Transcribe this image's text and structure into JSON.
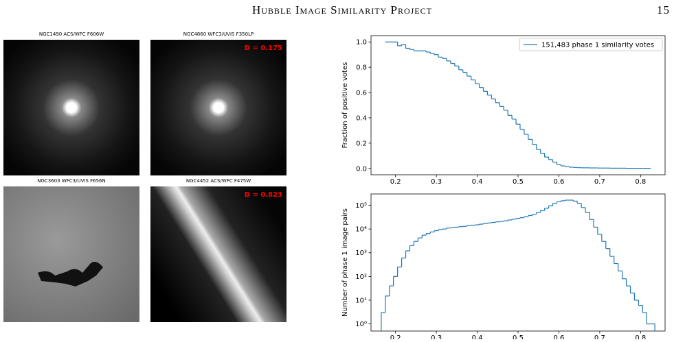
{
  "header": {
    "title": "Hubble Image Similarity Project",
    "page": "15"
  },
  "images": [
    {
      "caption": "NGC1490 ACS/WFC F606W"
    },
    {
      "caption": "NGC4860 WFC3/UVIS F350LP",
      "distance": "D = 0.175"
    },
    {
      "caption": "NGC3603 WFC3/UVIS F656N"
    },
    {
      "caption": "NGC4452 ACS/WFC F475W",
      "distance": "D = 0.823"
    }
  ],
  "chart_data": [
    {
      "type": "histogram",
      "ylabel": "Fraction of positive votes",
      "legend": "upper right",
      "log": false,
      "xlim": [
        0.14,
        0.86
      ],
      "ylim": [
        -0.05,
        1.05
      ],
      "xticks": [
        0.2,
        0.3,
        0.4,
        0.5,
        0.6,
        0.7,
        0.8
      ],
      "yticks": [
        {
          "value": 0,
          "label": "0.0"
        },
        {
          "value": 0.2,
          "label": "0.2"
        },
        {
          "value": 0.4,
          "label": "0.4"
        },
        {
          "value": 0.6,
          "label": "0.6"
        },
        {
          "value": 0.8,
          "label": "0.8"
        },
        {
          "value": 1,
          "label": "1.0"
        }
      ],
      "bins": [
        0.175,
        0.185,
        0.195,
        0.205,
        0.215,
        0.225,
        0.235,
        0.245,
        0.255,
        0.265,
        0.275,
        0.285,
        0.295,
        0.305,
        0.315,
        0.325,
        0.335,
        0.345,
        0.355,
        0.365,
        0.375,
        0.385,
        0.395,
        0.405,
        0.415,
        0.425,
        0.435,
        0.445,
        0.455,
        0.465,
        0.475,
        0.485,
        0.495,
        0.505,
        0.515,
        0.525,
        0.535,
        0.545,
        0.555,
        0.565,
        0.575,
        0.585,
        0.595,
        0.605,
        0.615,
        0.625,
        0.635,
        0.645,
        0.655,
        0.665,
        0.675,
        0.685,
        0.695,
        0.705,
        0.715,
        0.725,
        0.735,
        0.745,
        0.755,
        0.765,
        0.775,
        0.785,
        0.795,
        0.805,
        0.815,
        0.825
      ],
      "series": [
        {
          "name": "151,483 phase 1 similarity votes",
          "color": "#1f77b4",
          "values": [
            1.0,
            1.0,
            1.0,
            0.97,
            0.98,
            0.95,
            0.94,
            0.93,
            0.93,
            0.93,
            0.92,
            0.91,
            0.9,
            0.88,
            0.87,
            0.85,
            0.83,
            0.81,
            0.78,
            0.76,
            0.73,
            0.7,
            0.67,
            0.64,
            0.61,
            0.58,
            0.55,
            0.52,
            0.49,
            0.46,
            0.42,
            0.39,
            0.35,
            0.31,
            0.27,
            0.23,
            0.19,
            0.15,
            0.12,
            0.09,
            0.07,
            0.05,
            0.03,
            0.02,
            0.015,
            0.01,
            0.008,
            0.006,
            0.005,
            0.005,
            0.004,
            0.004,
            0.003,
            0.003,
            0.003,
            0.002,
            0.002,
            0.002,
            0.002,
            0.001,
            0.001,
            0.001,
            0.001,
            0.001,
            0.001
          ]
        }
      ]
    },
    {
      "type": "histogram",
      "ylabel": "Number of phase 1 image pairs",
      "log": true,
      "xlim": [
        0.14,
        0.86
      ],
      "ylim": [
        0.5,
        300000
      ],
      "xticks": [
        0.2,
        0.3,
        0.4,
        0.5,
        0.6,
        0.7,
        0.8
      ],
      "yticks": [
        {
          "value": 1,
          "label": "10⁰"
        },
        {
          "value": 10,
          "label": "10¹"
        },
        {
          "value": 100,
          "label": "10²"
        },
        {
          "value": 1000,
          "label": "10³"
        },
        {
          "value": 10000,
          "label": "10⁴"
        },
        {
          "value": 100000,
          "label": "10⁵"
        }
      ],
      "bins": [
        0.165,
        0.175,
        0.185,
        0.195,
        0.205,
        0.215,
        0.225,
        0.235,
        0.245,
        0.255,
        0.265,
        0.275,
        0.285,
        0.295,
        0.305,
        0.315,
        0.325,
        0.335,
        0.345,
        0.355,
        0.365,
        0.375,
        0.385,
        0.395,
        0.405,
        0.415,
        0.425,
        0.435,
        0.445,
        0.455,
        0.465,
        0.475,
        0.485,
        0.495,
        0.505,
        0.515,
        0.525,
        0.535,
        0.545,
        0.555,
        0.565,
        0.575,
        0.585,
        0.595,
        0.605,
        0.615,
        0.625,
        0.635,
        0.645,
        0.655,
        0.665,
        0.675,
        0.685,
        0.695,
        0.705,
        0.715,
        0.725,
        0.735,
        0.745,
        0.755,
        0.765,
        0.775,
        0.785,
        0.795,
        0.805,
        0.815,
        0.825,
        0.835
      ],
      "series": [
        {
          "color": "#1f77b4",
          "values": [
            3,
            15,
            40,
            100,
            250,
            600,
            1200,
            2000,
            3000,
            4200,
            5500,
            6500,
            7500,
            8500,
            9500,
            10000,
            11000,
            11500,
            12000,
            12500,
            13000,
            14000,
            14500,
            15000,
            16000,
            17000,
            18000,
            19000,
            20000,
            21000,
            22000,
            24000,
            26000,
            28000,
            30000,
            33000,
            37000,
            42000,
            50000,
            60000,
            75000,
            95000,
            120000,
            140000,
            155000,
            165000,
            165000,
            150000,
            120000,
            80000,
            50000,
            25000,
            12000,
            6000,
            3000,
            1500,
            700,
            350,
            170,
            80,
            40,
            20,
            10,
            6,
            3,
            1,
            1
          ]
        }
      ]
    }
  ]
}
